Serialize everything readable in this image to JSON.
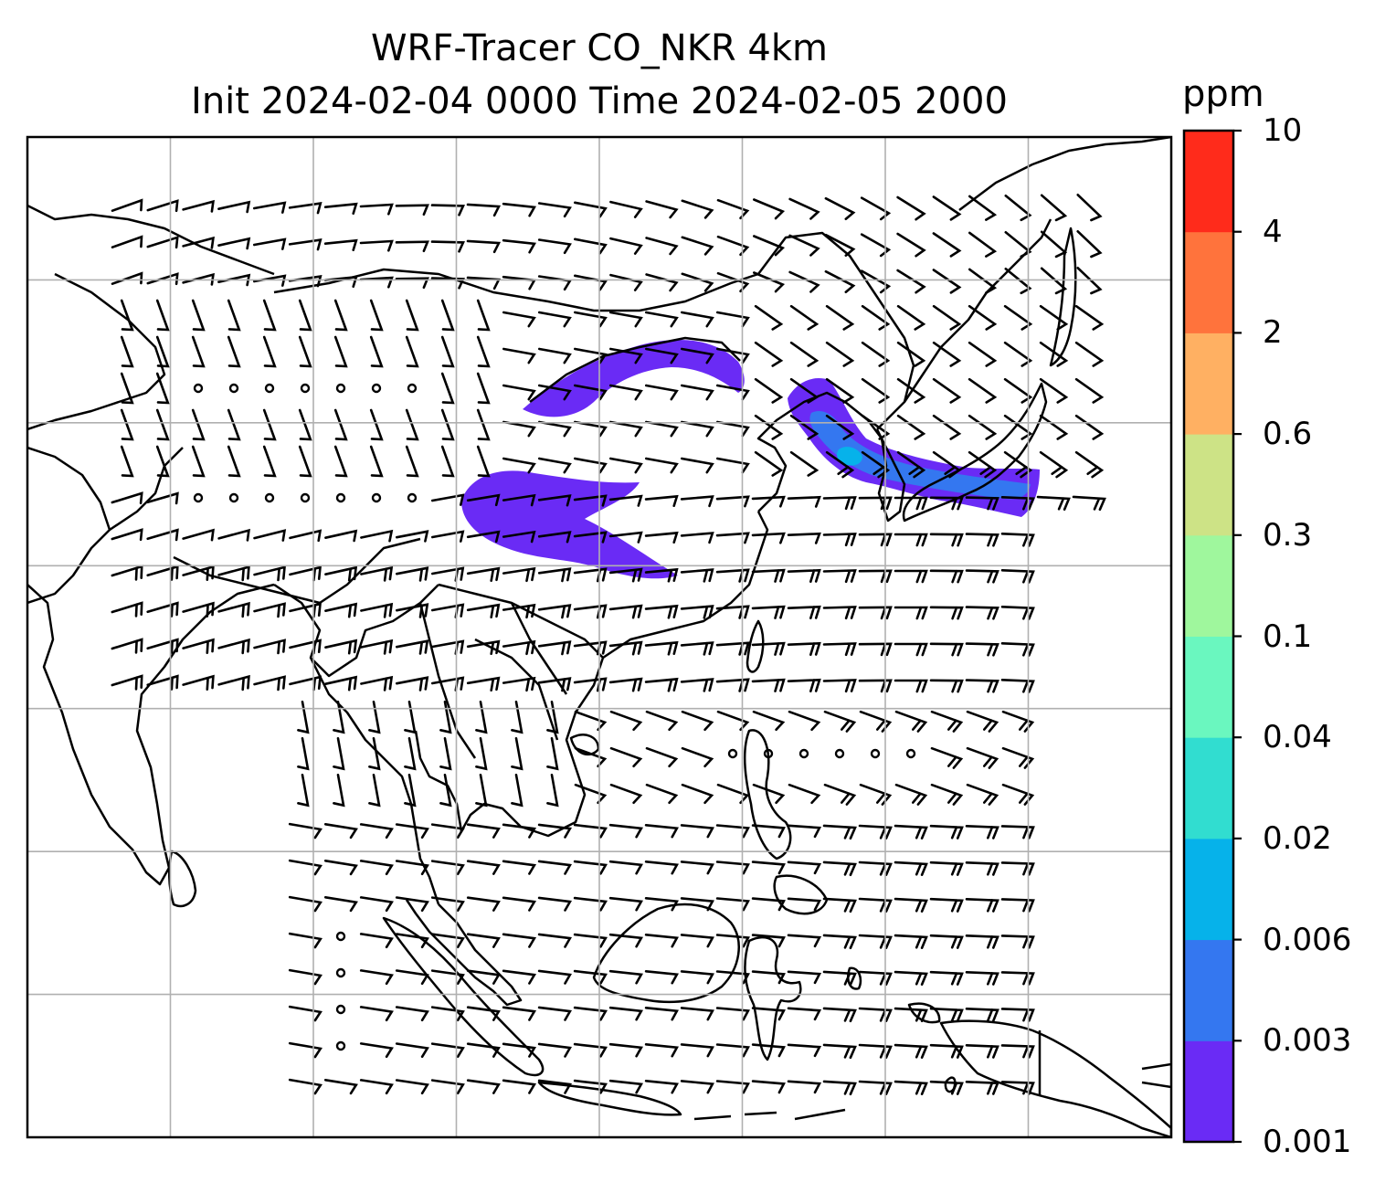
{
  "title": {
    "line1": "WRF-Tracer CO_NKR 4km",
    "line2": "Init 2024-02-04 0000 Time 2024-02-05 2000"
  },
  "colorbar": {
    "unit": "ppm",
    "levels": [
      "0.001",
      "0.003",
      "0.006",
      "0.02",
      "0.04",
      "0.1",
      "0.3",
      "0.6",
      "2",
      "4",
      "10"
    ],
    "colors": [
      "#6a2bf5",
      "#3477f0",
      "#06b2ea",
      "#31ddd0",
      "#6af7bf",
      "#9ff79d",
      "#cde386",
      "#ffb062",
      "#ff733c",
      "#ff2b1b"
    ]
  },
  "map": {
    "plume_color": "#6a2bf5",
    "plume_core_color": "#3477f0",
    "plume_peak_color": "#06b2ea",
    "grid": true,
    "gridline_color": "#b0b0b0"
  }
}
